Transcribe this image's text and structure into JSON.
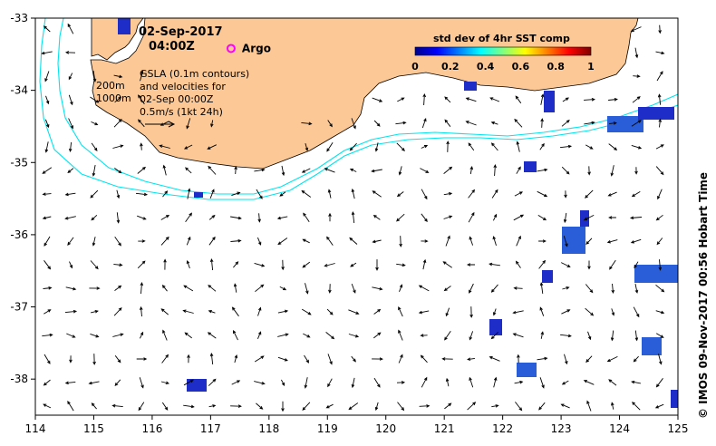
{
  "map": {
    "lon_range": [
      114,
      125
    ],
    "lat_range": [
      -38.5,
      -33
    ],
    "lon_ticks": [
      "114",
      "115",
      "116",
      "117",
      "118",
      "119",
      "120",
      "121",
      "122",
      "123",
      "124",
      "125"
    ],
    "lat_ticks": [
      "-33",
      "-34",
      "-35",
      "-36",
      "-37",
      "-38"
    ],
    "colors": {
      "land": "#fcc896",
      "isobath": "#00e5ee",
      "velocity_arrow": "#000000",
      "argo_marker": "#ff00ff"
    }
  },
  "header": {
    "date": "02-Sep-2017",
    "time": "04:00Z"
  },
  "argo": {
    "label": "Argo",
    "lon": 117.35,
    "lat": -33.42
  },
  "legend": {
    "isobath_200": "200m",
    "isobath_1000": "1000m",
    "gsla_line1": "GSLA (0.1m contours)",
    "gsla_line2": "and velocities for",
    "gsla_line3": "02-Sep 00:00Z",
    "scale_label": "0.5m/s (1kt 24h)"
  },
  "colorbar": {
    "title": "std dev of 4hr SST comp",
    "ticks": [
      "0",
      "0.2",
      "0.4",
      "0.6",
      "0.8",
      "1"
    ],
    "colormap": "jet"
  },
  "credit": "© IMOS 09-Nov-2017 00:56 Hobart Time"
}
